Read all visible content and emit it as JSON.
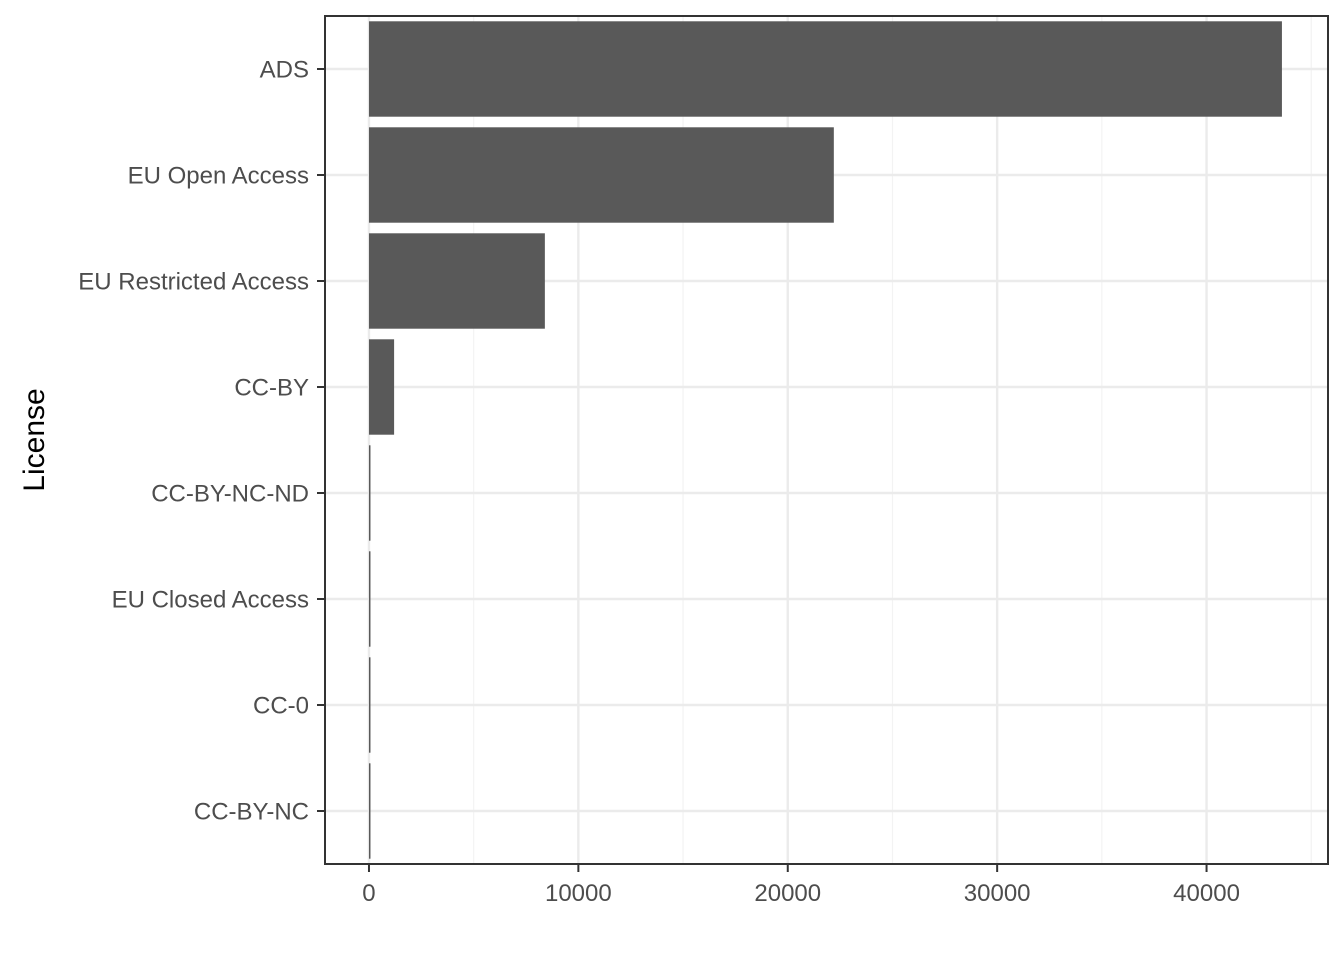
{
  "chart_data": {
    "type": "bar",
    "orientation": "horizontal",
    "categories": [
      "ADS",
      "EU Open Access",
      "EU Restricted Access",
      "CC-BY",
      "CC-BY-NC-ND",
      "EU Closed Access",
      "CC-0",
      "CC-BY-NC"
    ],
    "values": [
      43600,
      22200,
      8400,
      1200,
      70,
      50,
      20,
      10
    ],
    "xlabel": "",
    "ylabel": "License",
    "xlim": [
      -2100,
      45800
    ],
    "xticks": [
      0,
      10000,
      20000,
      30000,
      40000
    ],
    "xtick_labels": [
      "0",
      "10000",
      "20000",
      "30000",
      "40000"
    ],
    "grid": true,
    "theme": "bw",
    "colors": {
      "bar": "#595959",
      "grid_major": "#ebebeb",
      "grid_minor": "#f3f3f3",
      "panel_border": "#333333",
      "tick_text": "#4d4d4d",
      "axis_title": "#000000"
    }
  }
}
